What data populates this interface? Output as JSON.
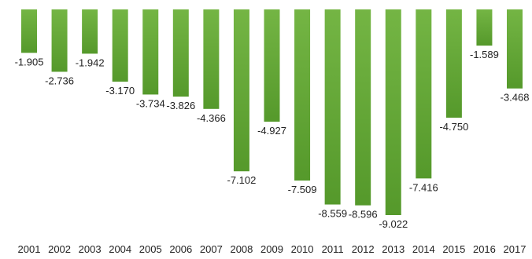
{
  "chart_data": {
    "type": "bar",
    "categories": [
      "2001",
      "2002",
      "2003",
      "2004",
      "2005",
      "2006",
      "2007",
      "2008",
      "2009",
      "2010",
      "2011",
      "2012",
      "2013",
      "2014",
      "2015",
      "2016",
      "2017"
    ],
    "values": [
      -1.905,
      -2.736,
      -1.942,
      -3.17,
      -3.734,
      -3.826,
      -4.366,
      -7.102,
      -4.927,
      -7.509,
      -8.559,
      -8.596,
      -9.022,
      -7.416,
      -4.75,
      -1.589,
      -3.468
    ],
    "value_labels": [
      "-1.905",
      "-2.736",
      "-1.942",
      "-3.170",
      "-3.734",
      "-3.826",
      "-4.366",
      "-7.102",
      "-4.927",
      "-7.509",
      "-8.559",
      "-8.596",
      "-9.022",
      "-7.416",
      "-4.750",
      "-1.589",
      "-3.468"
    ],
    "title": "",
    "xlabel": "",
    "ylabel": "",
    "ylim": [
      -9.022,
      0
    ],
    "grid": false,
    "legend": "none",
    "colors": {
      "bar_top": "#74b544",
      "bar_bottom": "#55992b"
    }
  }
}
